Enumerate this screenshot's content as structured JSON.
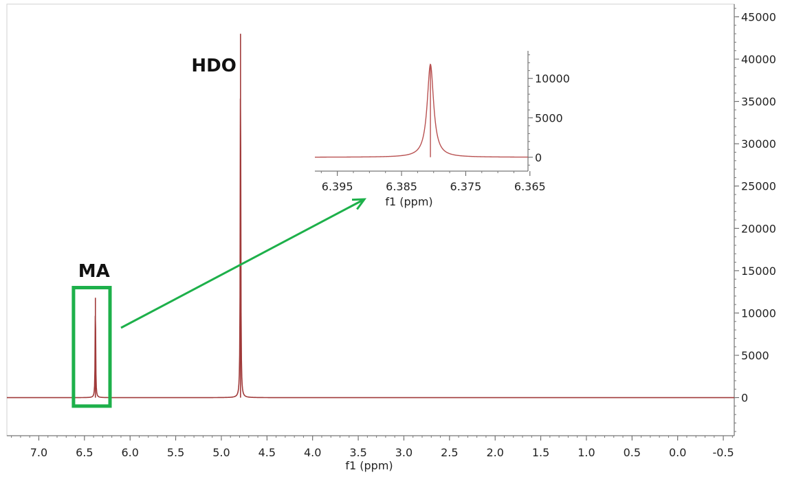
{
  "chart_data": [
    {
      "type": "line",
      "title": "",
      "xlabel": "f1 (ppm)",
      "ylabel": "",
      "x_reversed": true,
      "xlim": [
        7.35,
        -0.62
      ],
      "ylim": [
        -4500,
        46500
      ],
      "x_ticks": [
        "7.0",
        "6.5",
        "6.0",
        "5.5",
        "5.0",
        "4.5",
        "4.0",
        "3.5",
        "3.0",
        "2.5",
        "2.0",
        "1.5",
        "1.0",
        "0.5",
        "0.0",
        "-0.5"
      ],
      "x_tick_values": [
        7.0,
        6.5,
        6.0,
        5.5,
        5.0,
        4.5,
        4.0,
        3.5,
        3.0,
        2.5,
        2.0,
        1.5,
        1.0,
        0.5,
        0.0,
        -0.5
      ],
      "y_ticks": [
        "0",
        "5000",
        "10000",
        "15000",
        "20000",
        "25000",
        "30000",
        "35000",
        "40000",
        "45000"
      ],
      "y_tick_values": [
        0,
        5000,
        10000,
        15000,
        20000,
        25000,
        30000,
        35000,
        40000,
        45000
      ],
      "y_axis_side": "right",
      "grid": false,
      "series": [
        {
          "color": "#a03a3a",
          "peaks": [
            {
              "x": 6.38,
              "y": 11800
            },
            {
              "x": 4.79,
              "y": 43000
            }
          ],
          "baseline": 0
        }
      ],
      "annotations": [
        {
          "text": "HDO",
          "x": 4.79
        },
        {
          "text": "MA",
          "x": 6.38
        }
      ],
      "highlight_box": {
        "x_range": [
          6.62,
          6.22
        ],
        "y_range": [
          -1000,
          13000
        ],
        "color": "#1db04a"
      }
    },
    {
      "type": "line",
      "title": "",
      "xlabel": "f1 (ppm)",
      "ylabel": "",
      "x_reversed": true,
      "xlim": [
        6.3985,
        6.3653
      ],
      "ylim": [
        -1500,
        13500
      ],
      "x_ticks": [
        "6.395",
        "6.385",
        "6.375",
        "6.365"
      ],
      "x_tick_values": [
        6.395,
        6.385,
        6.375,
        6.365
      ],
      "y_ticks": [
        "0",
        "5000",
        "10000"
      ],
      "y_tick_values": [
        0,
        5000,
        10000
      ],
      "y_axis_side": "right",
      "grid": false,
      "series": [
        {
          "color": "#b85050",
          "peaks": [
            {
              "x": 6.3805,
              "y": 11800,
              "width": 0.0006
            }
          ],
          "baseline": 0
        }
      ]
    }
  ],
  "colors": {
    "spectrum": "#a03a3a",
    "inset_spectrum": "#b85050",
    "highlight": "#1db04a",
    "axis": "#555555"
  }
}
